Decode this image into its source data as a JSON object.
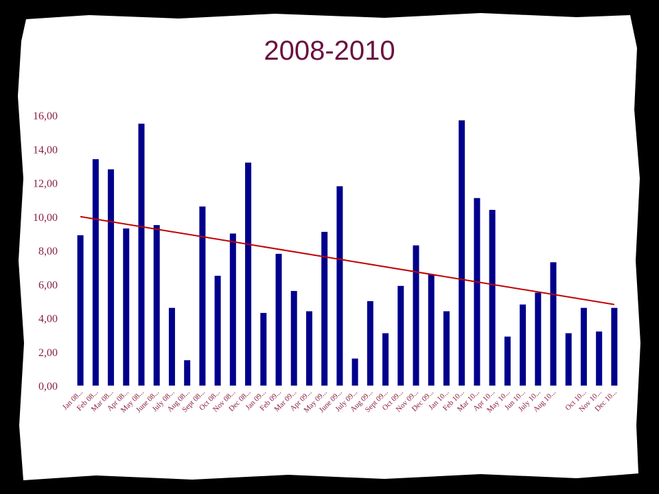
{
  "slide": {
    "title": "2008-2010",
    "colors": {
      "frame": "#000000",
      "paper": "#ffffff",
      "title": "#6b0f3f"
    }
  },
  "chart_data": {
    "type": "bar",
    "title": "",
    "xlabel": "",
    "ylabel": "",
    "ylim": [
      0,
      16
    ],
    "yticks": [
      "0,00",
      "2,00",
      "4,00",
      "6,00",
      "8,00",
      "10,00",
      "12,00",
      "14,00",
      "16,00"
    ],
    "grid": false,
    "legend": "none",
    "bar_color": "#00008b",
    "trend_color": "#c00000",
    "label_color": "#8b1e3f",
    "categories": [
      "Jan 08...",
      "Feb 08...",
      "Mar 08...",
      "Apr 08...",
      "May 08...",
      "June 08...",
      "July 08...",
      "Aug 08...",
      "Sept 08...",
      "Oct 08...",
      "Nov 08...",
      "Dec 08...",
      "Jan 09...",
      "Feb 09...",
      "Mar 09...",
      "Apr 09...",
      "May 09...",
      "June 09...",
      "July 09...",
      "Aug 09...",
      "Sept 09...",
      "Oct 09...",
      "Nov 09...",
      "Dec 09...",
      "Jan 10...",
      "Feb 10...",
      "Mar 10...",
      "Apr 10...",
      "May 10...",
      "Jun 10...",
      "July 10...",
      "Aug 10...",
      "",
      "Oct 10...",
      "Nov 10...",
      "Dec 10..."
    ],
    "values": [
      8.9,
      13.4,
      12.8,
      9.3,
      15.5,
      9.5,
      4.6,
      1.5,
      10.6,
      6.5,
      9.0,
      13.2,
      4.3,
      7.8,
      5.6,
      4.4,
      9.1,
      11.8,
      1.6,
      5.0,
      3.1,
      5.9,
      8.3,
      6.6,
      4.4,
      15.7,
      11.1,
      10.4,
      2.9,
      4.8,
      5.5,
      7.3,
      3.1,
      4.6,
      3.2,
      4.6
    ],
    "trendline": {
      "type": "linear",
      "start": 10.0,
      "end": 4.8
    }
  }
}
